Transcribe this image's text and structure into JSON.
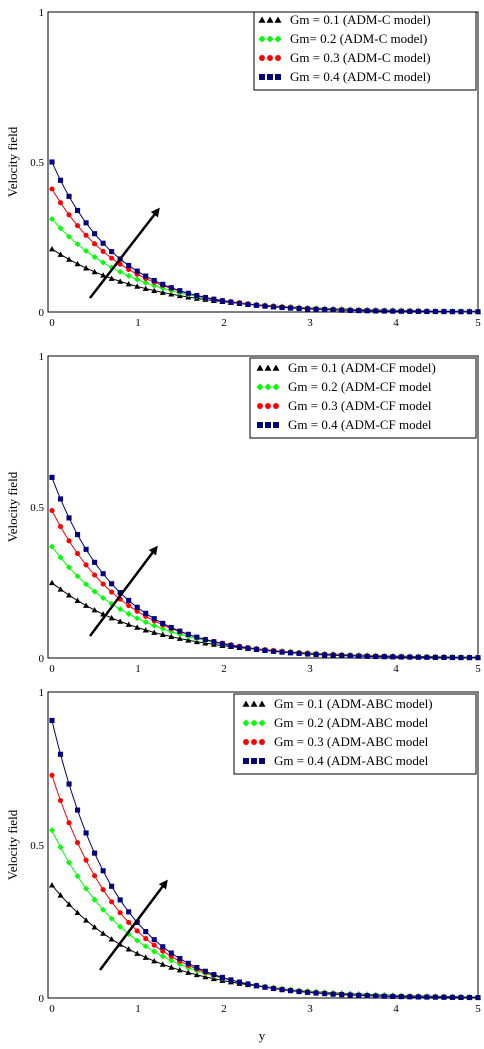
{
  "chart_data": [
    {
      "type": "line",
      "title": "",
      "xlabel": "",
      "ylabel": "Velocity field",
      "xlim": [
        0,
        5
      ],
      "ylim": [
        0,
        1
      ],
      "x_ticks": [
        "0",
        "1",
        "2",
        "3",
        "4",
        "5"
      ],
      "y_ticks": [
        "0",
        "0.5",
        "1"
      ],
      "grid": false,
      "legend_position": "top-right",
      "annotation": "arrow indicating increasing Gm",
      "series": [
        {
          "name": "Gm = 0.1  (ADM-C model)",
          "color": "#000000",
          "marker": "triangle",
          "y0": 0.21,
          "decay": 0.9
        },
        {
          "name": "Gm= 0.2  (ADM-C model)",
          "color": "#00ff00",
          "marker": "diamond",
          "y0": 0.31,
          "decay": 1.05
        },
        {
          "name": "Gm = 0.3  (ADM-C model)",
          "color": "#ff0000",
          "marker": "circle",
          "y0": 0.41,
          "decay": 1.18
        },
        {
          "name": "Gm = 0.4  (ADM-C model)",
          "color": "#000080",
          "marker": "square",
          "y0": 0.5,
          "decay": 1.3
        }
      ]
    },
    {
      "type": "line",
      "title": "",
      "xlabel": "",
      "ylabel": "Velocity field",
      "xlim": [
        0,
        5
      ],
      "ylim": [
        0,
        1
      ],
      "x_ticks": [
        "0",
        "1",
        "2",
        "3",
        "4",
        "5"
      ],
      "y_ticks": [
        "0",
        "0.5",
        "1"
      ],
      "grid": false,
      "legend_position": "top-right",
      "annotation": "arrow indicating increasing Gm",
      "series": [
        {
          "name": "Gm = 0.1  (ADM-CF model)",
          "color": "#000000",
          "marker": "triangle",
          "y0": 0.25,
          "decay": 0.9
        },
        {
          "name": "Gm = 0.2  (ADM-CF model",
          "color": "#00ff00",
          "marker": "diamond",
          "y0": 0.37,
          "decay": 1.03
        },
        {
          "name": "Gm = 0.3  (ADM-CF model",
          "color": "#ff0000",
          "marker": "circle",
          "y0": 0.49,
          "decay": 1.15
        },
        {
          "name": "Gm = 0.4  (ADM-CF model",
          "color": "#000080",
          "marker": "square",
          "y0": 0.6,
          "decay": 1.27
        }
      ]
    },
    {
      "type": "line",
      "title": "",
      "xlabel": "y",
      "ylabel": "Velocity field",
      "xlim": [
        0,
        5
      ],
      "ylim": [
        0,
        1
      ],
      "x_ticks": [
        "0",
        "1",
        "2",
        "3",
        "4",
        "5"
      ],
      "y_ticks": [
        "0",
        "0.5",
        "1"
      ],
      "grid": false,
      "legend_position": "top-right",
      "annotation": "arrow indicating increasing Gm",
      "series": [
        {
          "name": "Gm = 0.1 (ADM-ABC model)",
          "color": "#000000",
          "marker": "triangle",
          "y0": 0.37,
          "decay": 0.93
        },
        {
          "name": "Gm = 0.2 (ADM-ABC model",
          "color": "#00ff00",
          "marker": "diamond",
          "y0": 0.55,
          "decay": 1.07
        },
        {
          "name": "Gm = 0.3 (ADM-ABC model",
          "color": "#ff0000",
          "marker": "circle",
          "y0": 0.73,
          "decay": 1.2
        },
        {
          "name": "Gm = 0.4 (ADM-ABC model",
          "color": "#000080",
          "marker": "square",
          "y0": 0.91,
          "decay": 1.3
        }
      ]
    }
  ]
}
